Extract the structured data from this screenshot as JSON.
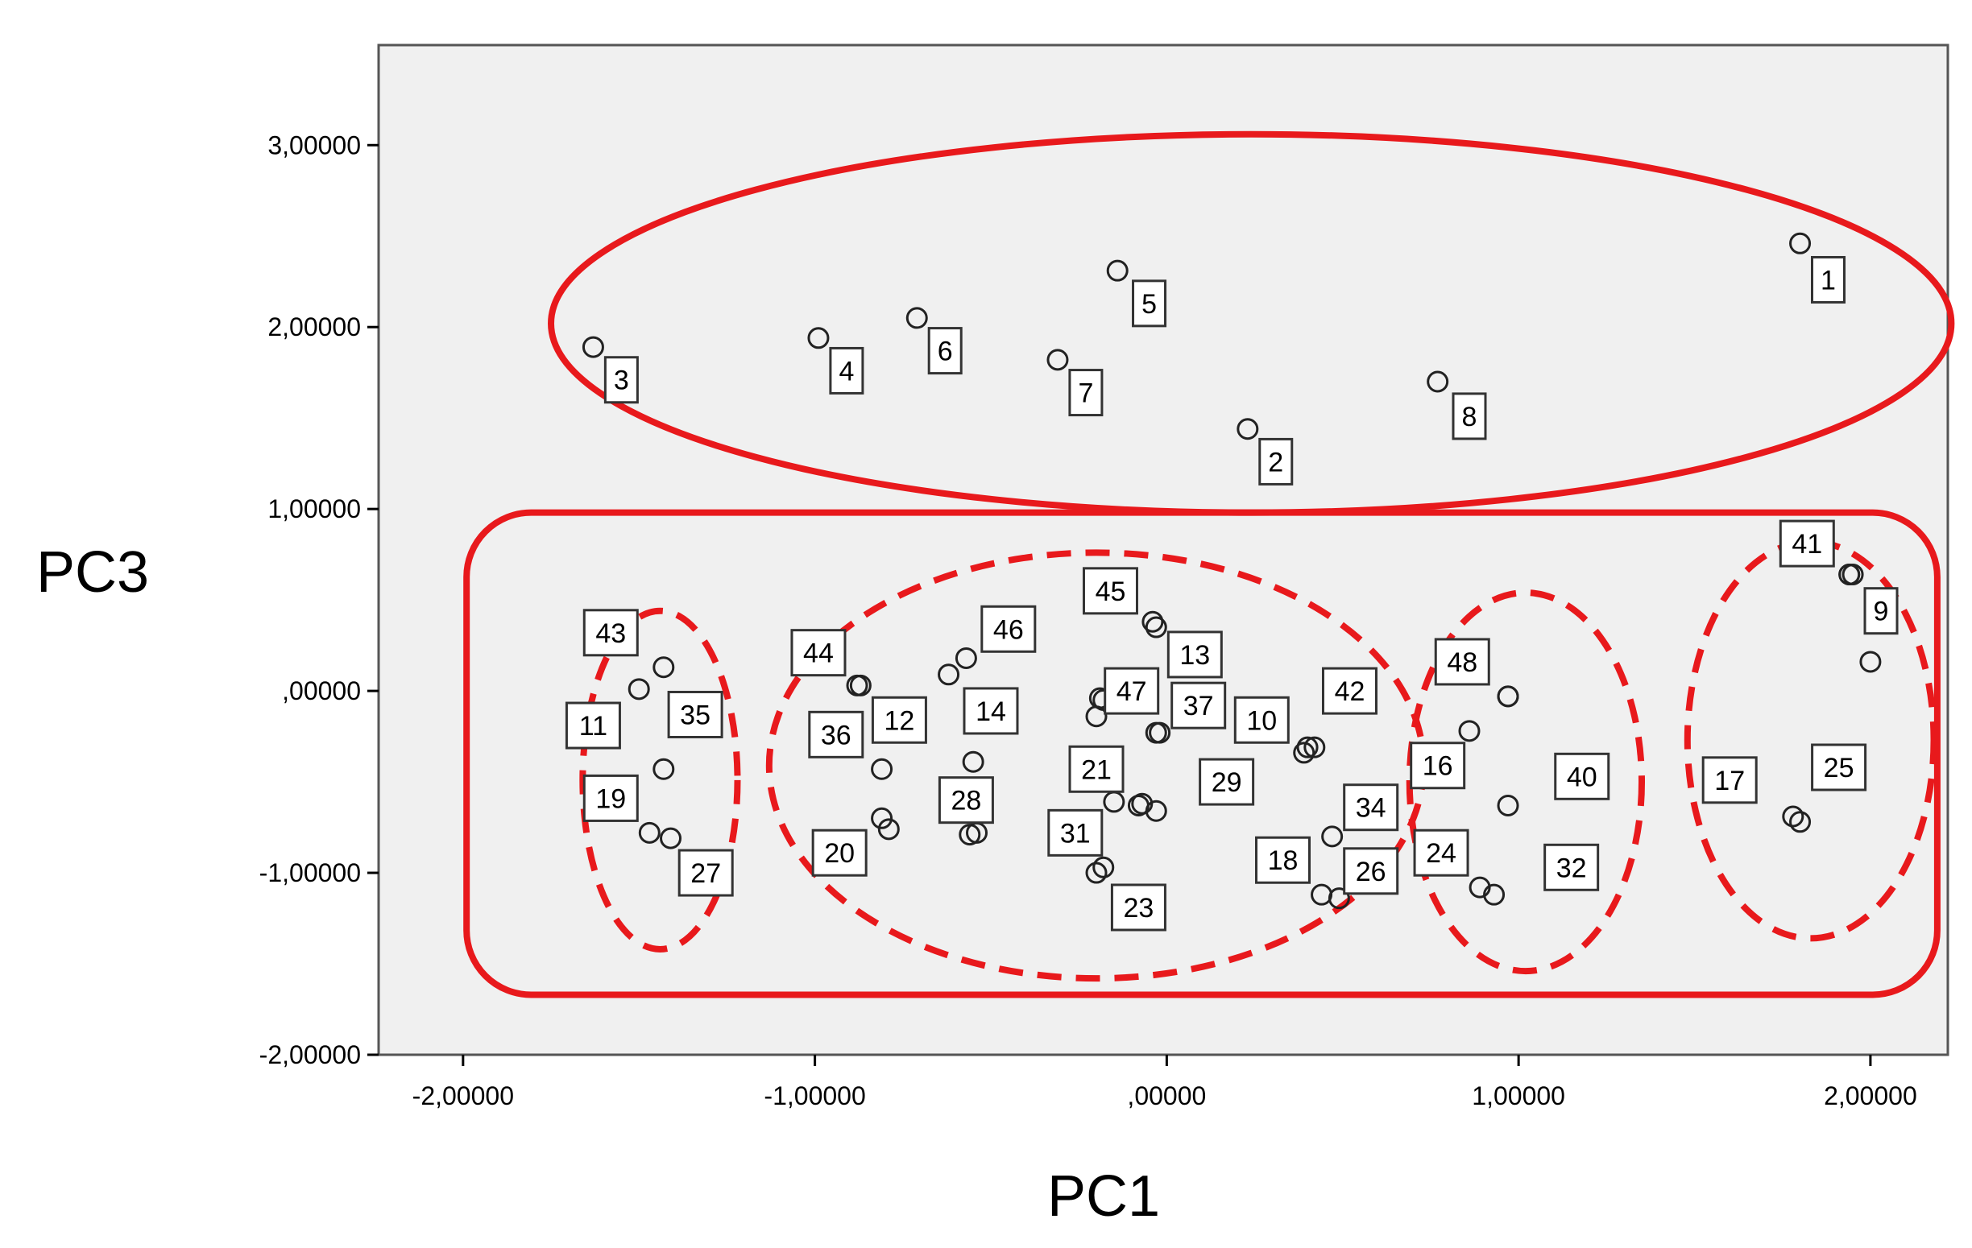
{
  "chart_data": {
    "type": "scatter",
    "title": "",
    "xlabel": "PC1",
    "ylabel": "PC3",
    "xlim": [
      -2.24,
      2.22
    ],
    "ylim": [
      -2.0,
      3.55
    ],
    "xticks": [
      -2,
      -1,
      0,
      1,
      2
    ],
    "xtick_labels": [
      "-2,00000",
      "-1,00000",
      ",00000",
      "1,00000",
      "2,00000"
    ],
    "yticks": [
      -2,
      -1,
      0,
      1,
      2,
      3
    ],
    "ytick_labels": [
      "-2,00000",
      "-1,00000",
      ",00000",
      "1,00000",
      "2,00000",
      "3,00000"
    ],
    "grid": false,
    "background": "#f0f0f0",
    "annotation_color": "#e8191c",
    "points": [
      {
        "id": "1",
        "x": 1.8,
        "y": 2.46,
        "lx": 1.88,
        "ly": 2.26
      },
      {
        "id": "2",
        "x": 0.23,
        "y": 1.44,
        "lx": 0.31,
        "ly": 1.26
      },
      {
        "id": "3",
        "x": -1.63,
        "y": 1.89,
        "lx": -1.55,
        "ly": 1.71
      },
      {
        "id": "4",
        "x": -0.99,
        "y": 1.94,
        "lx": -0.91,
        "ly": 1.76
      },
      {
        "id": "5",
        "x": -0.14,
        "y": 2.31,
        "lx": -0.05,
        "ly": 2.13
      },
      {
        "id": "6",
        "x": -0.71,
        "y": 2.05,
        "lx": -0.63,
        "ly": 1.87
      },
      {
        "id": "7",
        "x": -0.31,
        "y": 1.82,
        "lx": -0.23,
        "ly": 1.64
      },
      {
        "id": "8",
        "x": 0.77,
        "y": 1.7,
        "lx": 0.86,
        "ly": 1.51
      },
      {
        "id": "9",
        "x": 1.95,
        "y": 0.64,
        "lx": 2.03,
        "ly": 0.44
      },
      {
        "id": "10",
        "x": 0.39,
        "y": -0.34,
        "lx": 0.27,
        "ly": -0.16
      },
      {
        "id": "11",
        "x": -1.5,
        "y": 0.01,
        "lx": -1.63,
        "ly": -0.19
      },
      {
        "id": "12",
        "x": -0.87,
        "y": 0.03,
        "lx": -0.76,
        "ly": -0.16
      },
      {
        "id": "13",
        "x": -0.04,
        "y": 0.38,
        "lx": 0.08,
        "ly": 0.2
      },
      {
        "id": "14",
        "x": -0.57,
        "y": 0.18,
        "lx": -0.5,
        "ly": -0.11
      },
      {
        "id": "16",
        "x": 0.86,
        "y": -0.22,
        "lx": 0.77,
        "ly": -0.41
      },
      {
        "id": "17",
        "x": 1.78,
        "y": -0.69,
        "lx": 1.6,
        "ly": -0.49
      },
      {
        "id": "18",
        "x": 0.47,
        "y": -0.8,
        "lx": 0.33,
        "ly": -0.93
      },
      {
        "id": "19",
        "x": -1.43,
        "y": -0.43,
        "lx": -1.58,
        "ly": -0.59
      },
      {
        "id": "20",
        "x": -0.81,
        "y": -0.7,
        "lx": -0.93,
        "ly": -0.89
      },
      {
        "id": "21",
        "x": -0.2,
        "y": -0.14,
        "lx": -0.2,
        "ly": -0.43
      },
      {
        "id": "23",
        "x": -0.18,
        "y": -0.97,
        "lx": -0.08,
        "ly": -1.19
      },
      {
        "id": "24",
        "x": 0.93,
        "y": -1.12,
        "lx": 0.78,
        "ly": -0.89
      },
      {
        "id": "25",
        "x": 1.8,
        "y": -0.72,
        "lx": 1.91,
        "ly": -0.42
      },
      {
        "id": "26",
        "x": 0.49,
        "y": -1.14,
        "lx": 0.58,
        "ly": -0.99
      },
      {
        "id": "27",
        "x": -1.41,
        "y": -0.81,
        "lx": -1.31,
        "ly": -1.0
      },
      {
        "id": "28",
        "x": -0.56,
        "y": -0.79,
        "lx": -0.57,
        "ly": -0.6
      },
      {
        "id": "29",
        "x": -0.08,
        "y": -0.63,
        "lx": 0.17,
        "ly": -0.5
      },
      {
        "id": "31",
        "x": -0.2,
        "y": -1.0,
        "lx": -0.26,
        "ly": -0.78
      },
      {
        "id": "32",
        "x": 0.89,
        "y": -1.08,
        "lx": 1.15,
        "ly": -0.97
      },
      {
        "id": "34",
        "x": 0.44,
        "y": -1.12,
        "lx": 0.58,
        "ly": -0.64
      },
      {
        "id": "35",
        "x": -1.43,
        "y": 0.13,
        "lx": -1.34,
        "ly": -0.13
      },
      {
        "id": "36",
        "x": -0.88,
        "y": 0.03,
        "lx": -0.94,
        "ly": -0.24
      },
      {
        "id": "37",
        "x": -0.03,
        "y": -0.23,
        "lx": 0.09,
        "ly": -0.08
      },
      {
        "id": "40",
        "x": 0.97,
        "y": -0.63,
        "lx": 1.18,
        "ly": -0.47
      },
      {
        "id": "41",
        "x": 1.94,
        "y": 0.64,
        "lx": 1.82,
        "ly": 0.81
      },
      {
        "id": "42",
        "x": 0.42,
        "y": -0.31,
        "lx": 0.52,
        "ly": 0.0
      },
      {
        "id": "43",
        "x": -1.47,
        "y": -0.78,
        "lx": -1.58,
        "ly": 0.32
      },
      {
        "id": "44",
        "x": -0.81,
        "y": -0.43,
        "lx": -0.99,
        "ly": 0.21
      },
      {
        "id": "45",
        "x": -0.03,
        "y": 0.35,
        "lx": -0.16,
        "ly": 0.55
      },
      {
        "id": "46",
        "x": -0.62,
        "y": 0.09,
        "lx": -0.45,
        "ly": 0.34
      },
      {
        "id": "47",
        "x": -0.18,
        "y": -0.05,
        "lx": -0.1,
        "ly": 0.0
      },
      {
        "id": "48",
        "x": 0.97,
        "y": -0.03,
        "lx": 0.84,
        "ly": 0.16
      }
    ],
    "extra_markers": [
      {
        "x": -0.55,
        "y": -0.39
      },
      {
        "x": -0.54,
        "y": -0.78
      },
      {
        "x": -0.79,
        "y": -0.76
      },
      {
        "x": -0.15,
        "y": -0.61
      },
      {
        "x": -0.07,
        "y": -0.62
      },
      {
        "x": -0.03,
        "y": -0.66
      },
      {
        "x": -0.19,
        "y": -0.04
      },
      {
        "x": 1.94,
        "y": 0.64
      },
      {
        "x": 2.0,
        "y": 0.16
      },
      {
        "x": 0.97,
        "y": -0.03
      },
      {
        "x": -0.02,
        "y": -0.23
      },
      {
        "x": 0.4,
        "y": -0.31
      }
    ],
    "groups": [
      {
        "shape": "ellipse",
        "style": "solid",
        "cx": 0.24,
        "cy": 2.02,
        "rx": 1.99,
        "ry": 1.04
      },
      {
        "shape": "rounded-rect",
        "style": "solid",
        "x0": -1.99,
        "x1": 2.19,
        "y0": -1.67,
        "y1": 0.98
      },
      {
        "shape": "ellipse",
        "style": "dashed",
        "cx": -1.44,
        "cy": -0.49,
        "rx": 0.22,
        "ry": 0.93
      },
      {
        "shape": "ellipse",
        "style": "dashed",
        "cx": -0.2,
        "cy": -0.41,
        "rx": 0.93,
        "ry": 1.17
      },
      {
        "shape": "ellipse",
        "style": "dashed",
        "cx": 1.02,
        "cy": -0.5,
        "rx": 0.33,
        "ry": 1.04
      },
      {
        "shape": "ellipse",
        "style": "dashed",
        "cx": 1.83,
        "cy": -0.27,
        "rx": 0.35,
        "ry": 1.09
      }
    ]
  }
}
